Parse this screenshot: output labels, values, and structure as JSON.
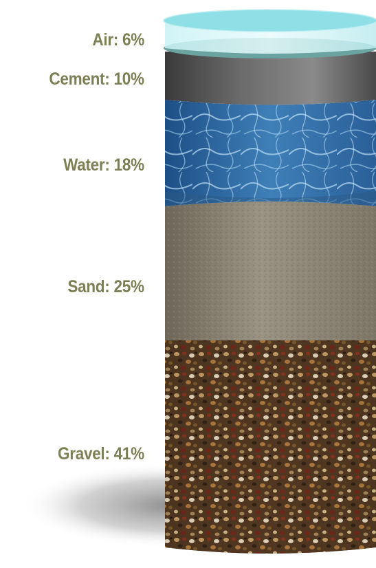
{
  "colors": {
    "label_text": "#7d7f55",
    "air": "#9ee3ea",
    "cement": "#5f5f5f",
    "water": "#3f7fb8",
    "sand": "#8d8575",
    "gravel": "#6b4a2c"
  },
  "layers": [
    {
      "key": "air",
      "label": "Air: 6%",
      "percent": 6
    },
    {
      "key": "cement",
      "label": "Cement: 10%",
      "percent": 10
    },
    {
      "key": "water",
      "label": "Water: 18%",
      "percent": 18
    },
    {
      "key": "sand",
      "label": "Sand: 25%",
      "percent": 25
    },
    {
      "key": "gravel",
      "label": "Gravel: 41%",
      "percent": 41
    }
  ]
}
